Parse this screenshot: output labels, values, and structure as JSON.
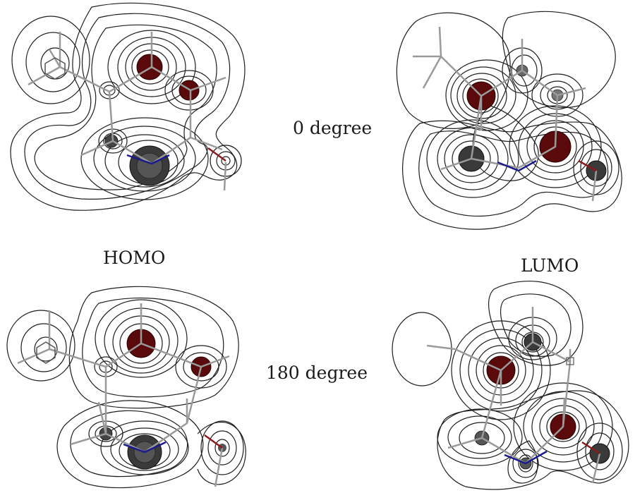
{
  "labels": {
    "angle_top": "0 degree",
    "angle_bottom": "180 degree",
    "homo": "HOMO",
    "lumo": "LUMO"
  },
  "colors": {
    "contour_line": "#1e1e1e",
    "positive_lobe": "#5a0a0a",
    "negative_lobe": "#2d2d2d",
    "bond": "#9a9a9a",
    "nitrogen_bond": "#1a1a8c",
    "oxygen_bond": "#8c1a1a"
  },
  "panels": {
    "homo_top": {
      "orbital": "HOMO",
      "angle": "0 degree"
    },
    "lumo_top": {
      "orbital": "LUMO",
      "angle": "0 degree"
    },
    "homo_bottom": {
      "orbital": "HOMO",
      "angle": "180 degree"
    },
    "lumo_bottom": {
      "orbital": "LUMO",
      "angle": "180 degree"
    }
  }
}
